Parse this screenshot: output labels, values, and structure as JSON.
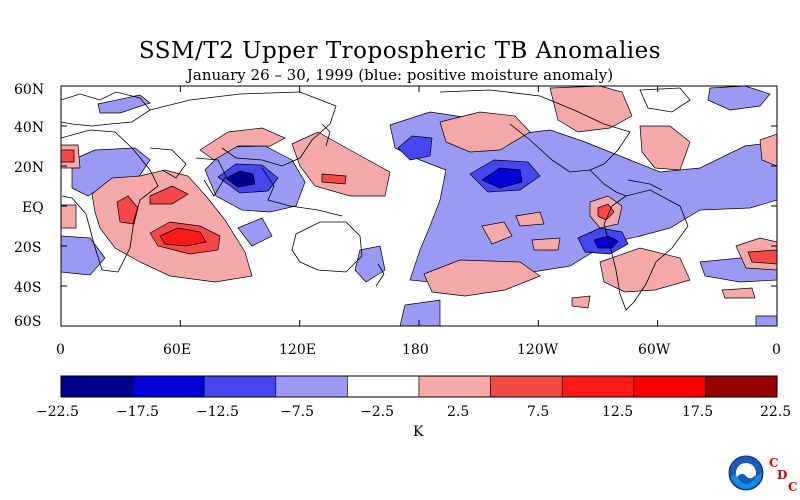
{
  "title": "SSM/T2 Upper Tropospheric TB Anomalies",
  "subtitle": "January 26 – 30, 1999 (blue: positive moisture anomaly)",
  "lat_labels": [
    "60N",
    "40N",
    "20N",
    "EQ",
    "20S",
    "40S",
    "60S"
  ],
  "lon_labels": [
    "0",
    "60E",
    "120E",
    "180",
    "120W",
    "60W",
    "0"
  ],
  "colorbar": {
    "unit": "K",
    "ticks": [
      "−22.5",
      "−17.5",
      "−12.5",
      "−7.5",
      "−2.5",
      "2.5",
      "7.5",
      "12.5",
      "17.5",
      "22.5"
    ],
    "colors": [
      "#00008f",
      "#0000d8",
      "#4646f0",
      "#9a9af5",
      "#ffffff",
      "#f5a8a8",
      "#f54848",
      "#ff1a1a",
      "#ff0000",
      "#960000"
    ]
  },
  "logo": {
    "name": "NOAA",
    "letters": [
      "C",
      "D",
      "C"
    ]
  }
}
